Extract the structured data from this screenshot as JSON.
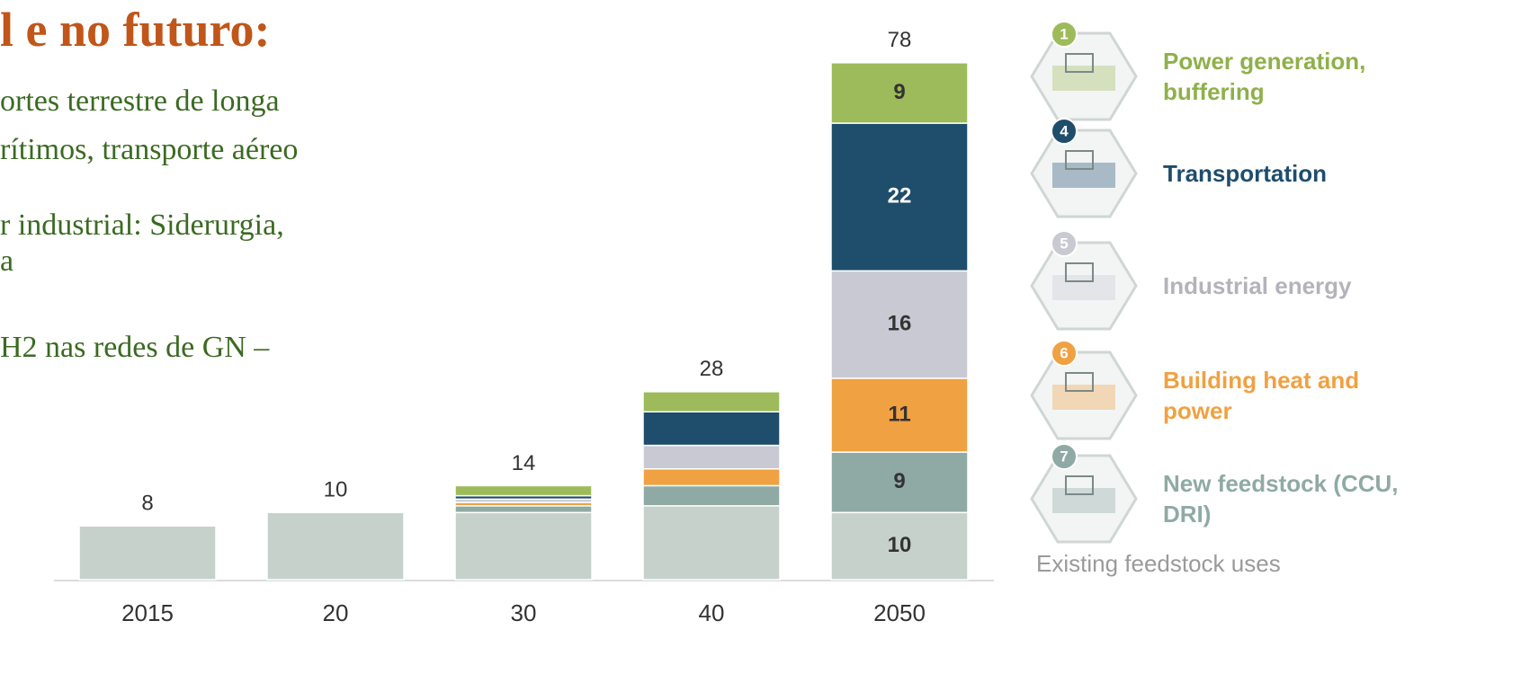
{
  "heading": "l e no futuro:",
  "text_lines": [
    "ortes terrestre de longa",
    "rítimos, transporte aéreo",
    "r  industrial: Siderurgia,",
    "a",
    "H2 nas redes de GN –"
  ],
  "chart_data": {
    "type": "stacked_bar",
    "categories": [
      "2015",
      "20",
      "30",
      "40",
      "2050"
    ],
    "totals": [
      8,
      10,
      14,
      28,
      78
    ],
    "series": [
      {
        "name": "Existing feedstock uses",
        "color": "#c6d1cc",
        "text_color": "#9a9a9a",
        "values": [
          8,
          10,
          10,
          11,
          10
        ],
        "value_labels": [
          null,
          null,
          null,
          null,
          "10"
        ]
      },
      {
        "name": "New feedstock (CCU, DRI)",
        "badge": "7",
        "color": "#8faaa4",
        "text_color": "#8faaa4",
        "values": [
          0,
          0,
          1,
          3,
          9
        ],
        "value_labels": [
          null,
          null,
          null,
          null,
          "9"
        ]
      },
      {
        "name": "Building heat and power",
        "badge": "6",
        "color": "#f0a141",
        "text_color": "#f0a141",
        "values": [
          0,
          0,
          0.5,
          2.5,
          11
        ],
        "value_labels": [
          null,
          null,
          null,
          null,
          "11"
        ]
      },
      {
        "name": "Industrial energy",
        "badge": "5",
        "color": "#c9c9d4",
        "text_color": "#b3b3bb",
        "values": [
          0,
          0,
          0.5,
          3.5,
          16
        ],
        "value_labels": [
          null,
          null,
          null,
          null,
          "16"
        ]
      },
      {
        "name": "Transportation",
        "badge": "4",
        "color": "#1f4d6c",
        "text_color": "#1f4d6c",
        "values": [
          0,
          0,
          0.5,
          5,
          22
        ],
        "value_labels": [
          null,
          null,
          null,
          null,
          "22"
        ]
      },
      {
        "name": "Power generation, buffering",
        "badge": "1",
        "color": "#9dbb5a",
        "text_color": "#8fb04a",
        "values": [
          0,
          0,
          1.5,
          3,
          9
        ],
        "value_labels": [
          null,
          null,
          null,
          null,
          "9"
        ]
      }
    ]
  }
}
